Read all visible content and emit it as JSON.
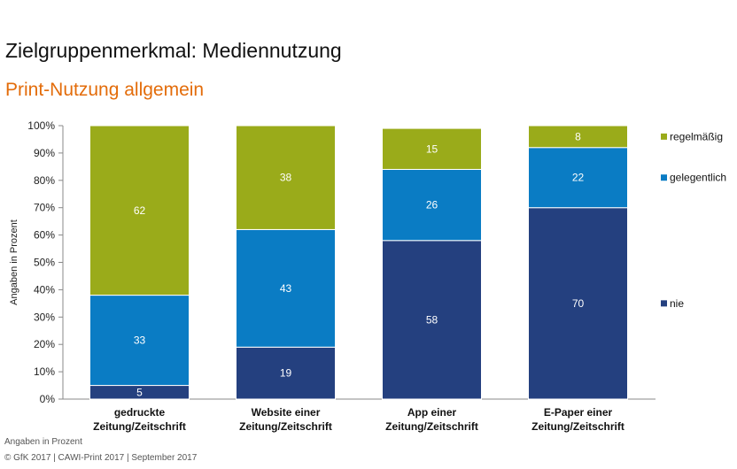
{
  "page": {
    "title": "Zielgruppenmerkmal: Mediennutzung",
    "subtitle": "Print-Nutzung allgemein",
    "footnote": "Angaben in Prozent",
    "source": "© GfK 2017 | CAWI-Print 2017 | September 2017"
  },
  "colors": {
    "subtitle": "#E36C0A",
    "regelmaessig": "#9AAB1A",
    "gelegentlich": "#0A7CC4",
    "nie": "#24407F"
  },
  "chart_data": {
    "type": "bar",
    "stacked": true,
    "categories": [
      [
        "gedruckte",
        "Zeitung/Zeitschrift"
      ],
      [
        "Website einer",
        "Zeitung/Zeitschrift"
      ],
      [
        "App einer",
        "Zeitung/Zeitschrift"
      ],
      [
        "E-Paper einer",
        "Zeitung/Zeitschrift"
      ]
    ],
    "series": [
      {
        "name": "nie",
        "color": "#24407F",
        "values": [
          5,
          19,
          58,
          70
        ]
      },
      {
        "name": "gelegentlich",
        "color": "#0A7CC4",
        "values": [
          33,
          43,
          26,
          22
        ]
      },
      {
        "name": "regelmäßig",
        "color": "#9AAB1A",
        "values": [
          62,
          38,
          15,
          8
        ]
      }
    ],
    "ylabel": "Angaben in Prozent",
    "ylim": [
      0,
      100
    ],
    "yticks": [
      "0%",
      "10%",
      "20%",
      "30%",
      "40%",
      "50%",
      "60%",
      "70%",
      "80%",
      "90%",
      "100%"
    ],
    "legend_placement": "right"
  }
}
